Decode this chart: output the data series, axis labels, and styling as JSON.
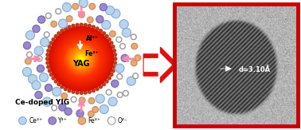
{
  "bg_color": "#ffffff",
  "arrow_color": "#dd1111",
  "yag_label": "YAG",
  "fe_label": "Fe³⁺",
  "al_label": "Al³⁺",
  "ce_doped_label": "Ce-doped YIG",
  "legend_items": [
    {
      "label": "Ce³⁺",
      "color": "#b8d4ee",
      "edgecolor": "#88aacc"
    },
    {
      "label": "Y³⁺",
      "color": "#9988cc",
      "edgecolor": "#7766aa"
    },
    {
      "label": "Fe³⁺",
      "color": "#e8a878",
      "edgecolor": "#cc8858"
    },
    {
      "label": "O²⁻",
      "color": "#ffffff",
      "edgecolor": "#999999"
    }
  ],
  "tem_annotation": "d=3.10Å",
  "pink_arrow_color": "#ff88aa",
  "dot_color": "#cc3300"
}
